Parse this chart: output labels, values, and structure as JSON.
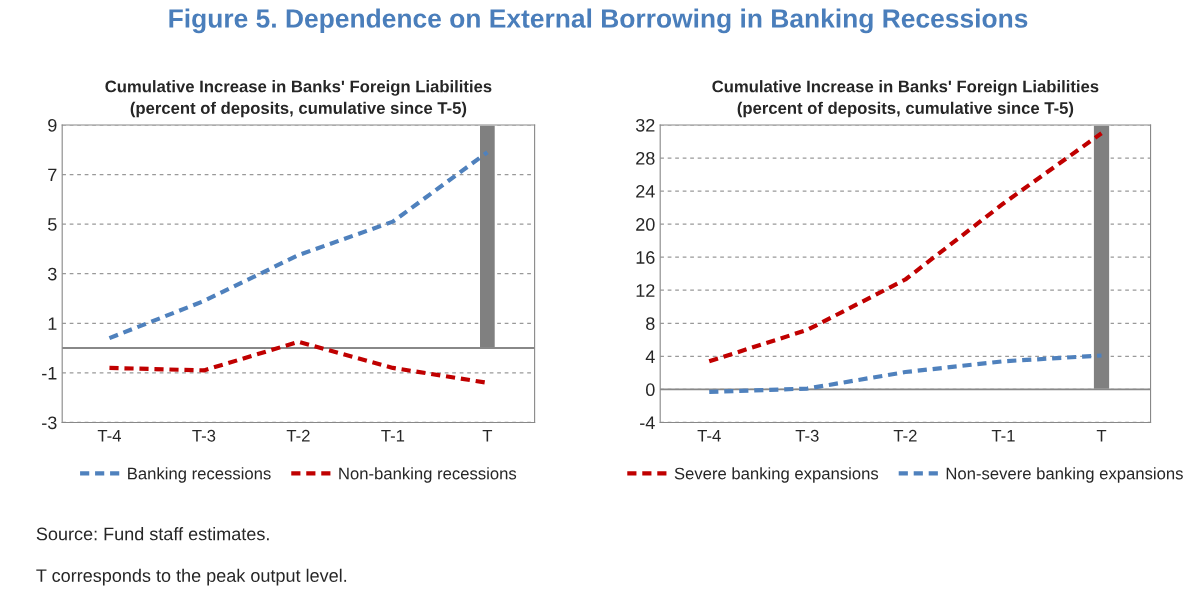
{
  "chart_data": [
    {
      "type": "line",
      "title": "Figure 5. Dependence on External Borrowing in Banking Recessions",
      "subtitle": "Cumulative Increase in Banks' Foreign Liabilities\n(percent of deposits, cumulative since T-5)",
      "categories": [
        "T-4",
        "T-3",
        "T-2",
        "T-1",
        "T"
      ],
      "series": [
        {
          "type": "bar",
          "color": "#808080",
          "values": [
            null,
            null,
            null,
            null,
            9
          ]
        },
        {
          "name": "Banking recessions",
          "color": "#4f81bd",
          "values": [
            0.4,
            1.9,
            3.75,
            5.1,
            7.9
          ]
        },
        {
          "name": "Non-banking recessions",
          "color": "#c00000",
          "values": [
            -0.8,
            -0.9,
            0.25,
            -0.8,
            -1.4
          ]
        }
      ],
      "ylim": [
        -3,
        9
      ],
      "yticks": [
        -3,
        -1,
        1,
        3,
        5,
        7,
        9
      ],
      "grid": "y",
      "legend": "bottom",
      "line_style": "dashed",
      "annotations": [
        "Source: Fund staff estimates.",
        "T corresponds to the peak output level."
      ]
    },
    {
      "type": "line",
      "subtitle": "Cumulative Increase in Banks' Foreign Liabilities\n(percent of deposits, cumulative since T-5)",
      "categories": [
        "T-4",
        "T-3",
        "T-2",
        "T-1",
        "T"
      ],
      "series": [
        {
          "type": "bar",
          "color": "#808080",
          "values": [
            null,
            null,
            null,
            null,
            32
          ]
        },
        {
          "name": "Severe banking expansions",
          "color": "#c00000",
          "values": [
            3.4,
            7.2,
            13.3,
            22.5,
            31
          ]
        },
        {
          "name": "Non-severe banking expansions",
          "color": "#4f81bd",
          "values": [
            -0.3,
            0.1,
            2.1,
            3.4,
            4.1
          ]
        }
      ],
      "ylim": [
        -4,
        32
      ],
      "yticks": [
        -4,
        0,
        4,
        8,
        12,
        16,
        20,
        24,
        28,
        32
      ],
      "grid": "y",
      "legend": "bottom",
      "line_style": "dashed"
    }
  ]
}
